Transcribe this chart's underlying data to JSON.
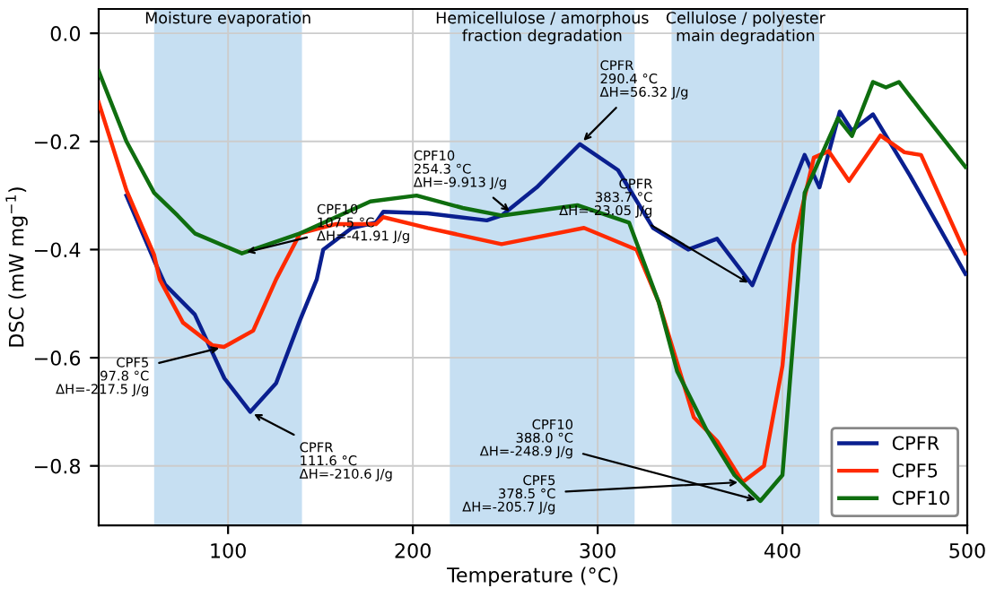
{
  "chart_data": {
    "type": "line",
    "xlabel": "Temperature (°C)",
    "ylabel": "DSC (mW mg$^{−1}$)",
    "xlim": [
      30,
      500
    ],
    "ylim": [
      -0.91,
      0.045
    ],
    "xticks": [
      100,
      200,
      300,
      400,
      500
    ],
    "yticks": [
      {
        "value": 0,
        "label": "0.0"
      },
      {
        "value": -0.2,
        "label": "−0.2"
      },
      {
        "value": -0.4,
        "label": "−0.4"
      },
      {
        "value": -0.6,
        "label": "−0.6"
      },
      {
        "value": -0.8,
        "label": "−0.8"
      }
    ],
    "grid": true,
    "legend": "bottom right",
    "line_style": "solid",
    "marker": "none",
    "series": [
      {
        "name": "CPFR",
        "color": "#0a1f8f",
        "x": [
          45,
          60,
          66,
          82,
          98,
          112,
          126,
          139,
          148,
          151.5,
          167,
          180,
          184,
          208,
          240,
          248,
          267,
          290.4,
          311,
          330,
          349,
          364.6,
          383.7,
          397.5,
          412,
          420,
          431,
          437.6,
          449,
          469,
          499
        ],
        "values": [
          -0.3,
          -0.42,
          -0.465,
          -0.52,
          -0.638,
          -0.7,
          -0.647,
          -0.53,
          -0.455,
          -0.4,
          -0.36,
          -0.35,
          -0.33,
          -0.333,
          -0.346,
          -0.337,
          -0.285,
          -0.205,
          -0.253,
          -0.36,
          -0.4,
          -0.38,
          -0.466,
          -0.35,
          -0.225,
          -0.285,
          -0.145,
          -0.18,
          -0.15,
          -0.263,
          -0.445
        ]
      },
      {
        "name": "CPF5",
        "color": "#ff2a00",
        "x": [
          30,
          45,
          60,
          63,
          75.6,
          91.6,
          97.8,
          113.6,
          126,
          139,
          158,
          180,
          184,
          208,
          248,
          292.6,
          321,
          333,
          352,
          364.6,
          378.5,
          390,
          400,
          406,
          417,
          425,
          436,
          453,
          466,
          475,
          499
        ],
        "values": [
          -0.128,
          -0.29,
          -0.41,
          -0.455,
          -0.535,
          -0.577,
          -0.58,
          -0.55,
          -0.455,
          -0.37,
          -0.353,
          -0.353,
          -0.34,
          -0.36,
          -0.39,
          -0.36,
          -0.4,
          -0.497,
          -0.71,
          -0.754,
          -0.83,
          -0.8,
          -0.615,
          -0.39,
          -0.23,
          -0.218,
          -0.273,
          -0.189,
          -0.22,
          -0.225,
          -0.407
        ]
      },
      {
        "name": "CPF10",
        "color": "#0f6e0f",
        "x": [
          30,
          45,
          60,
          72.7,
          82,
          107.5,
          139,
          177,
          202,
          227,
          248,
          289,
          317,
          333,
          343,
          359,
          374,
          388,
          400,
          406,
          412,
          430,
          437.6,
          449,
          456,
          463,
          475.5,
          499
        ],
        "values": [
          -0.07,
          -0.2,
          -0.295,
          -0.337,
          -0.37,
          -0.407,
          -0.37,
          -0.311,
          -0.3,
          -0.323,
          -0.337,
          -0.318,
          -0.35,
          -0.497,
          -0.625,
          -0.734,
          -0.817,
          -0.865,
          -0.817,
          -0.56,
          -0.295,
          -0.157,
          -0.19,
          -0.09,
          -0.1,
          -0.09,
          -0.145,
          -0.247
        ]
      }
    ],
    "bands": [
      {
        "axis": "x",
        "from": 60,
        "to": 140,
        "label": "Moisture evaporation",
        "color": "#c6dff2"
      },
      {
        "axis": "x",
        "from": 220,
        "to": 320,
        "label": "Hemicellulose / amorphous\nfraction degradation",
        "color": "#c6dff2"
      },
      {
        "axis": "x",
        "from": 340,
        "to": 420,
        "label": "Cellulose / polyester\nmain degradation",
        "color": "#c6dff2"
      }
    ],
    "annotations": [
      {
        "text": "CPFR\n290.4 °C\nΔH=56.32 J/g",
        "x": 290.4,
        "y": -0.205
      },
      {
        "text": "CPF10\n254.3 °C\nΔH=-9.913 J/g",
        "x": 254.3,
        "y": -0.335
      },
      {
        "text": "CPF10\n107.5 °C\nΔH=-41.91 J/g",
        "x": 107.5,
        "y": -0.407
      },
      {
        "text": "CPF5\n97.8 °C\nΔH=-217.5 J/g",
        "x": 97.8,
        "y": -0.58
      },
      {
        "text": "CPFR\n111.6 °C\nΔH=-210.6 J/g",
        "x": 111.6,
        "y": -0.7
      },
      {
        "text": "CPFR\n383.7 °C\nΔH=-23.05 J/g",
        "x": 383.7,
        "y": -0.466
      },
      {
        "text": "CPF10\n388.0 °C\nΔH=-248.9 J/g",
        "x": 388.0,
        "y": -0.865
      },
      {
        "text": "CPF5\n378.5 °C\nΔH=-205.7 J/g",
        "x": 378.5,
        "y": -0.83
      }
    ]
  }
}
